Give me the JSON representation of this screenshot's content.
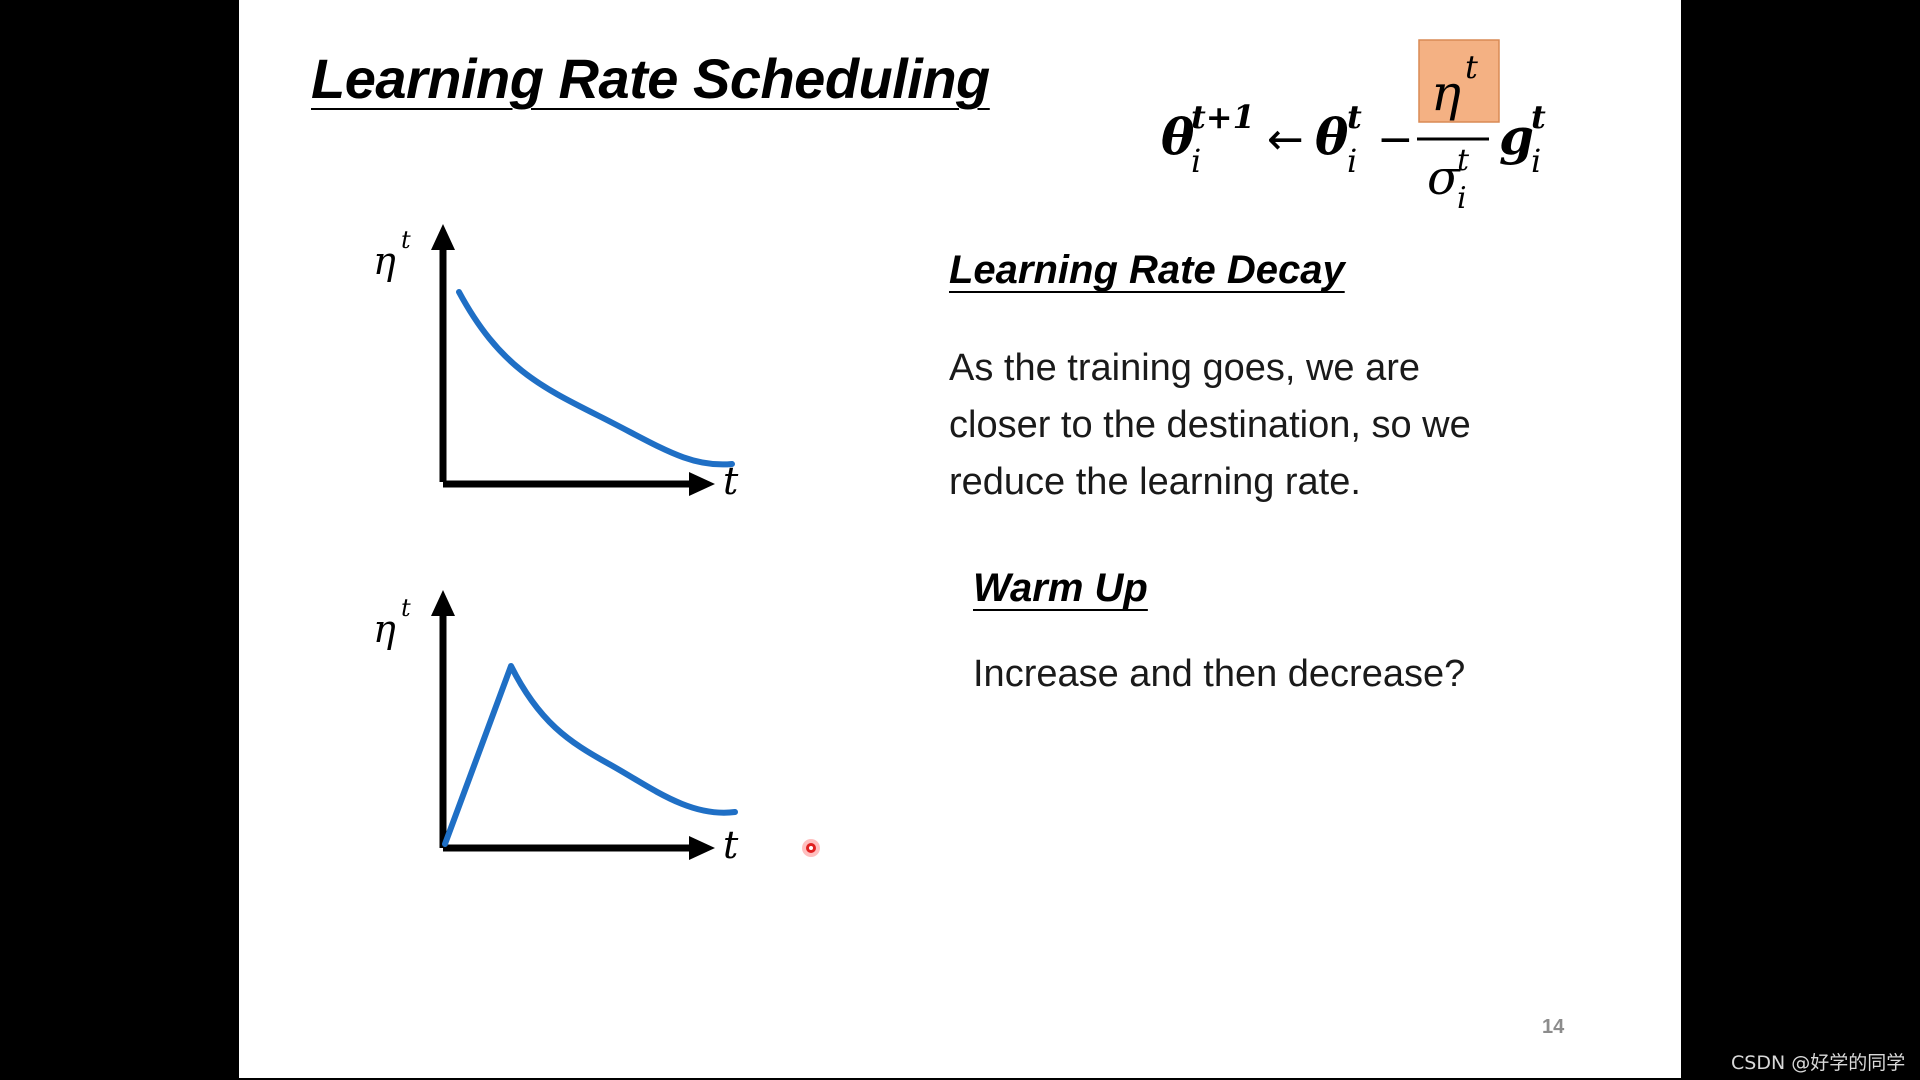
{
  "slide": {
    "title": "Learning Rate Scheduling",
    "page_number": "14"
  },
  "formula": {
    "theta": "θ",
    "sub_i": "i",
    "sup_t_plus_1": "t+1",
    "sup_t": "t",
    "arrow": "←",
    "minus": "−",
    "eta": "η",
    "sigma": "σ",
    "g": "g",
    "highlight_color": "#f4b183"
  },
  "decay": {
    "heading": "Learning Rate Decay",
    "lines": [
      "As the training goes, we are",
      "closer to the destination, so we",
      "reduce the learning rate."
    ]
  },
  "warmup": {
    "heading": "Warm Up",
    "description": "Increase and then decrease?"
  },
  "plots": {
    "y_label": "η",
    "y_label_sup": "t",
    "x_label": "t",
    "curve_color": "#1f6fc5"
  },
  "watermark": "CSDN @好学的同学",
  "pointer_color": "#e02020"
}
